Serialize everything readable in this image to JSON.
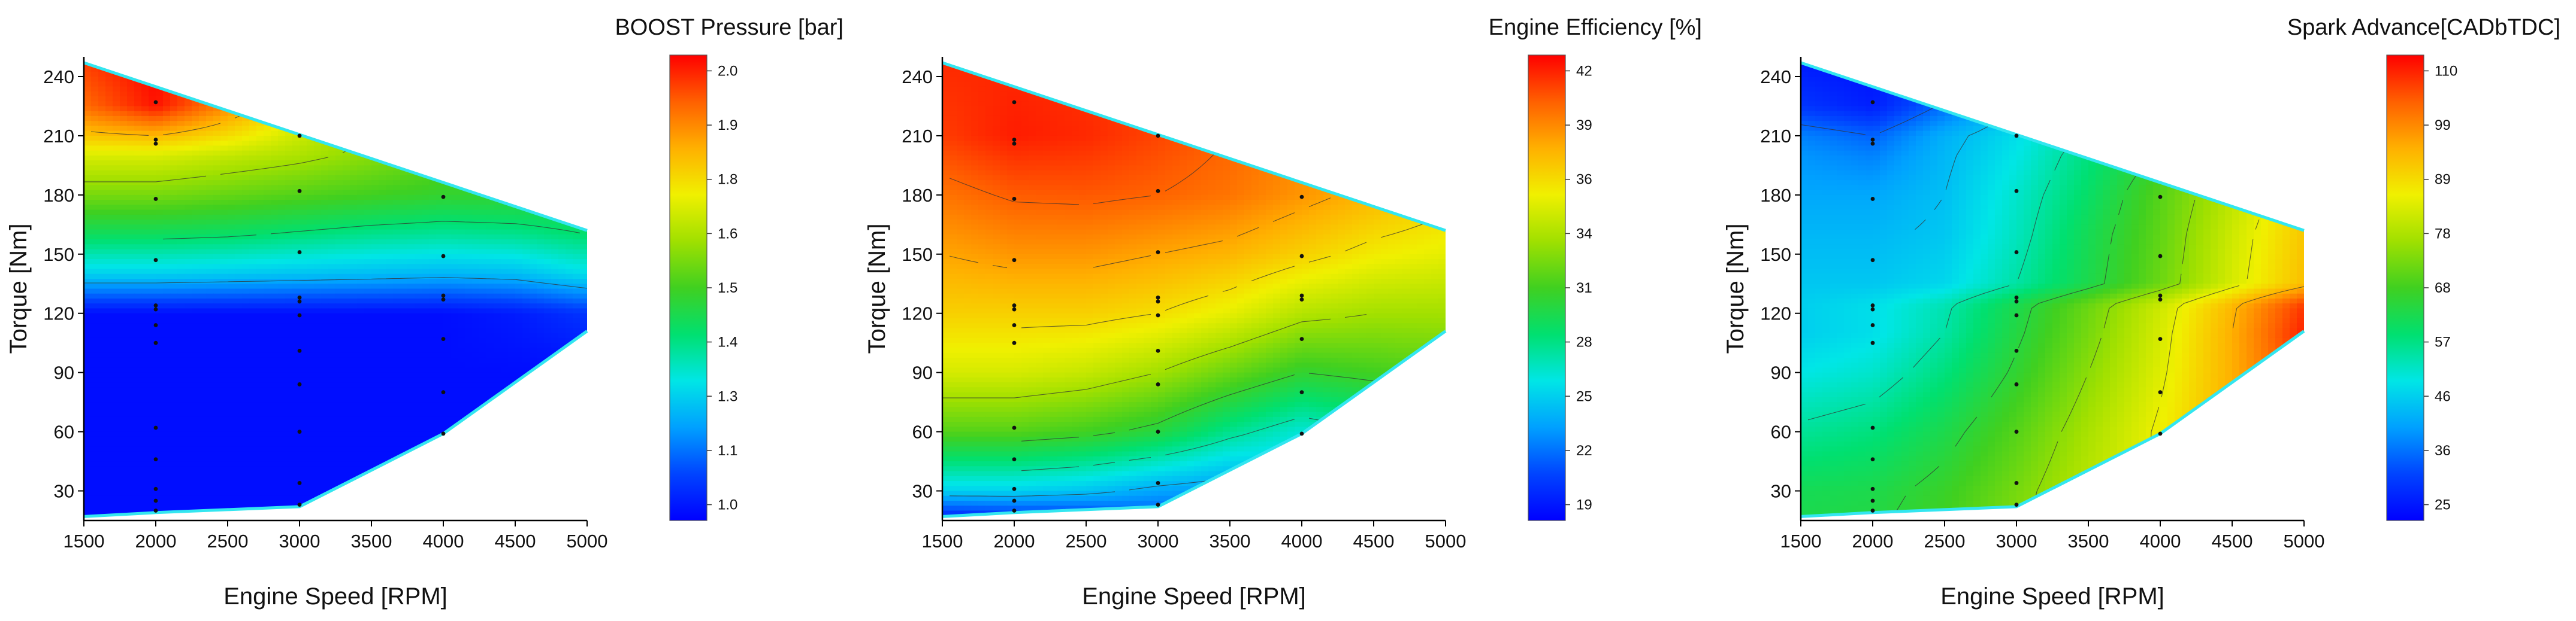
{
  "chart_data": [
    {
      "type": "heatmap",
      "title": "BOOST Pressure [bar]",
      "xlabel": "Engine Speed [RPM]",
      "ylabel": "Torque [Nm]",
      "xlim": [
        1500,
        5000
      ],
      "ylim": [
        15,
        250
      ],
      "xticks": [
        1500,
        2000,
        2500,
        3000,
        3500,
        4000,
        4500,
        5000
      ],
      "yticks": [
        30,
        60,
        90,
        120,
        150,
        180,
        210,
        240
      ],
      "colorbar": {
        "min": 0.98,
        "max": 2.02,
        "ticks": [
          "1.0",
          "1.1",
          "1.3",
          "1.4",
          "1.5",
          "1.6",
          "1.8",
          "1.9",
          "2.0"
        ]
      },
      "envelope": [
        [
          1500,
          247
        ],
        [
          5000,
          162
        ],
        [
          5000,
          111
        ],
        [
          4000,
          59
        ],
        [
          3000,
          22
        ],
        [
          2000,
          19
        ],
        [
          1500,
          17
        ]
      ],
      "contour_levels": [
        1.2,
        1.4,
        1.6,
        1.8
      ],
      "field": {
        "y": [
          15,
          30,
          60,
          90,
          120,
          140,
          160,
          180,
          200,
          210,
          225,
          250
        ],
        "x": [
          1500,
          2000,
          2500,
          3000,
          3500,
          4000,
          4500,
          5000
        ],
        "z": [
          [
            1.0,
            1.0,
            1.0,
            1.0,
            1.0,
            1.0,
            1.0,
            1.0
          ],
          [
            1.0,
            1.0,
            1.0,
            1.0,
            1.0,
            1.0,
            1.0,
            1.0
          ],
          [
            1.0,
            1.0,
            1.0,
            1.0,
            1.0,
            1.0,
            1.0,
            1.0
          ],
          [
            1.0,
            1.0,
            1.0,
            1.0,
            1.0,
            1.0,
            1.0,
            1.0
          ],
          [
            1.0,
            1.0,
            1.0,
            1.0,
            1.0,
            1.0,
            1.02,
            1.06
          ],
          [
            1.26,
            1.26,
            1.25,
            1.24,
            1.23,
            1.22,
            1.23,
            1.28
          ],
          [
            1.42,
            1.42,
            1.41,
            1.39,
            1.37,
            1.36,
            1.37,
            1.4
          ],
          [
            1.56,
            1.56,
            1.54,
            1.52,
            1.5,
            1.48,
            1.48,
            1.48
          ],
          [
            1.68,
            1.68,
            1.65,
            1.62,
            1.58,
            1.54,
            1.52,
            1.5
          ],
          [
            1.78,
            1.8,
            1.74,
            1.66,
            1.6,
            1.55,
            1.52,
            1.5
          ],
          [
            1.9,
            2.0,
            1.86,
            1.72,
            1.64,
            1.58,
            1.54,
            1.5
          ],
          [
            1.96,
            2.02,
            1.92,
            1.78,
            1.68,
            1.6,
            1.55,
            1.5
          ]
        ]
      },
      "points": [
        [
          2000,
          227
        ],
        [
          2000,
          208
        ],
        [
          2000,
          206
        ],
        [
          2000,
          178
        ],
        [
          2000,
          147
        ],
        [
          2000,
          124
        ],
        [
          2000,
          122
        ],
        [
          2000,
          114
        ],
        [
          2000,
          105
        ],
        [
          2000,
          62
        ],
        [
          2000,
          46
        ],
        [
          2000,
          31
        ],
        [
          2000,
          25
        ],
        [
          2000,
          20
        ],
        [
          3000,
          210
        ],
        [
          3000,
          182
        ],
        [
          3000,
          151
        ],
        [
          3000,
          128
        ],
        [
          3000,
          126
        ],
        [
          3000,
          119
        ],
        [
          3000,
          101
        ],
        [
          3000,
          84
        ],
        [
          3000,
          60
        ],
        [
          3000,
          34
        ],
        [
          3000,
          23
        ],
        [
          4000,
          179
        ],
        [
          4000,
          149
        ],
        [
          4000,
          129
        ],
        [
          4000,
          127
        ],
        [
          4000,
          107
        ],
        [
          4000,
          80
        ],
        [
          4000,
          59
        ]
      ]
    },
    {
      "type": "heatmap",
      "title": "Engine Efficiency [%]",
      "xlabel": "Engine Speed [RPM]",
      "ylabel": "Torque [Nm]",
      "xlim": [
        1500,
        5000
      ],
      "ylim": [
        15,
        250
      ],
      "xticks": [
        1500,
        2000,
        2500,
        3000,
        3500,
        4000,
        4500,
        5000
      ],
      "yticks": [
        30,
        60,
        90,
        120,
        150,
        180,
        210,
        240
      ],
      "colorbar": {
        "min": 18.5,
        "max": 42.5,
        "ticks": [
          "19",
          "22",
          "25",
          "28",
          "31",
          "34",
          "36",
          "39",
          "42"
        ]
      },
      "envelope": [
        [
          1500,
          247
        ],
        [
          5000,
          162
        ],
        [
          5000,
          111
        ],
        [
          4000,
          59
        ],
        [
          3000,
          22
        ],
        [
          2000,
          19
        ],
        [
          1500,
          17
        ]
      ],
      "contour_levels": [
        24,
        27,
        30,
        33,
        36,
        38,
        40
      ],
      "field": {
        "y": [
          15,
          30,
          60,
          90,
          120,
          150,
          180,
          210,
          250
        ],
        "x": [
          1500,
          2000,
          2500,
          3000,
          3500,
          4000,
          4500,
          5000
        ],
        "z": [
          [
            19,
            19.5,
            20,
            21,
            22,
            23,
            24,
            25
          ],
          [
            25,
            25,
            24.5,
            23.5,
            23,
            24,
            25,
            26
          ],
          [
            31,
            31,
            30.5,
            29.5,
            27.5,
            26,
            27,
            28
          ],
          [
            34.5,
            34.5,
            34,
            33,
            31.5,
            30,
            30.5,
            31
          ],
          [
            36.5,
            36.5,
            36.5,
            36,
            35,
            33.5,
            33,
            33
          ],
          [
            38,
            38.5,
            38.5,
            38,
            37.5,
            36.5,
            35.5,
            35
          ],
          [
            39.5,
            40.2,
            40.3,
            40,
            39.5,
            38.5,
            37.5,
            36.5
          ],
          [
            41,
            41.8,
            41.5,
            40.8,
            40,
            39,
            38,
            37
          ],
          [
            41.5,
            41.5,
            41.2,
            40.8,
            40,
            39,
            38,
            37
          ]
        ]
      },
      "points": [
        [
          2000,
          227
        ],
        [
          2000,
          208
        ],
        [
          2000,
          206
        ],
        [
          2000,
          178
        ],
        [
          2000,
          147
        ],
        [
          2000,
          124
        ],
        [
          2000,
          122
        ],
        [
          2000,
          114
        ],
        [
          2000,
          105
        ],
        [
          2000,
          62
        ],
        [
          2000,
          46
        ],
        [
          2000,
          31
        ],
        [
          2000,
          25
        ],
        [
          2000,
          20
        ],
        [
          3000,
          210
        ],
        [
          3000,
          182
        ],
        [
          3000,
          151
        ],
        [
          3000,
          128
        ],
        [
          3000,
          126
        ],
        [
          3000,
          119
        ],
        [
          3000,
          101
        ],
        [
          3000,
          84
        ],
        [
          3000,
          60
        ],
        [
          3000,
          34
        ],
        [
          3000,
          23
        ],
        [
          4000,
          179
        ],
        [
          4000,
          149
        ],
        [
          4000,
          129
        ],
        [
          4000,
          127
        ],
        [
          4000,
          107
        ],
        [
          4000,
          80
        ],
        [
          4000,
          59
        ]
      ]
    },
    {
      "type": "heatmap",
      "title": "Spark Advance[CADbTDC]",
      "xlabel": "Engine Speed [RPM]",
      "ylabel": "Torque [Nm]",
      "xlim": [
        1500,
        5000
      ],
      "ylim": [
        15,
        250
      ],
      "xticks": [
        1500,
        2000,
        2500,
        3000,
        3500,
        4000,
        4500,
        5000
      ],
      "yticks": [
        30,
        60,
        90,
        120,
        150,
        180,
        210,
        240
      ],
      "colorbar": {
        "min": 23,
        "max": 113,
        "ticks": [
          "25",
          "36",
          "46",
          "57",
          "68",
          "78",
          "89",
          "99",
          "110"
        ]
      },
      "envelope": [
        [
          1500,
          247
        ],
        [
          5000,
          162
        ],
        [
          5000,
          111
        ],
        [
          4000,
          59
        ],
        [
          3000,
          22
        ],
        [
          2000,
          19
        ],
        [
          1500,
          17
        ]
      ],
      "contour_levels": [
        35,
        45,
        55,
        65,
        75,
        85,
        95
      ],
      "field": {
        "y": [
          15,
          30,
          60,
          90,
          110,
          124,
          135,
          160,
          180,
          200,
          210,
          225,
          250
        ],
        "x": [
          1500,
          2000,
          2500,
          3000,
          3500,
          4000,
          4500,
          5000
        ],
        "z": [
          [
            63,
            64,
            68,
            74,
            80,
            85,
            92,
            100
          ],
          [
            62,
            63,
            67,
            73,
            80,
            86,
            93,
            102
          ],
          [
            56,
            58,
            63,
            70,
            78,
            86,
            95,
            106
          ],
          [
            50,
            52,
            58,
            66,
            75,
            84,
            95,
            108
          ],
          [
            47,
            49,
            55,
            64,
            73,
            83,
            95,
            110
          ],
          [
            47,
            49,
            54,
            63,
            72,
            82,
            94,
            108
          ],
          [
            46,
            46,
            48,
            55,
            63,
            72,
            83,
            93
          ],
          [
            44,
            44,
            46,
            53,
            62,
            71,
            82,
            92
          ],
          [
            42,
            42,
            45,
            52,
            60,
            70,
            80,
            90
          ],
          [
            40,
            38,
            44,
            50,
            58,
            66,
            75,
            85
          ],
          [
            38,
            35,
            43,
            49,
            56,
            64,
            72,
            80
          ],
          [
            30,
            27,
            36,
            45,
            52,
            60,
            68,
            75
          ],
          [
            26,
            25,
            30,
            40,
            48,
            55,
            62,
            70
          ]
        ]
      },
      "points": [
        [
          2000,
          227
        ],
        [
          2000,
          208
        ],
        [
          2000,
          206
        ],
        [
          2000,
          178
        ],
        [
          2000,
          147
        ],
        [
          2000,
          124
        ],
        [
          2000,
          122
        ],
        [
          2000,
          114
        ],
        [
          2000,
          105
        ],
        [
          2000,
          62
        ],
        [
          2000,
          46
        ],
        [
          2000,
          31
        ],
        [
          2000,
          25
        ],
        [
          2000,
          20
        ],
        [
          3000,
          210
        ],
        [
          3000,
          182
        ],
        [
          3000,
          151
        ],
        [
          3000,
          128
        ],
        [
          3000,
          126
        ],
        [
          3000,
          119
        ],
        [
          3000,
          101
        ],
        [
          3000,
          84
        ],
        [
          3000,
          60
        ],
        [
          3000,
          34
        ],
        [
          3000,
          23
        ],
        [
          4000,
          179
        ],
        [
          4000,
          149
        ],
        [
          4000,
          129
        ],
        [
          4000,
          127
        ],
        [
          4000,
          107
        ],
        [
          4000,
          80
        ],
        [
          4000,
          59
        ]
      ]
    }
  ],
  "colors": {
    "colormap": [
      "#0000ff",
      "#0044ff",
      "#00a0ff",
      "#00e6e6",
      "#00e070",
      "#40d020",
      "#a0e000",
      "#f0f000",
      "#ffb000",
      "#ff6000",
      "#ff0000"
    ],
    "envelope_edge": "#33e6f0",
    "contour_line": "#333333",
    "axis": "#000000"
  }
}
